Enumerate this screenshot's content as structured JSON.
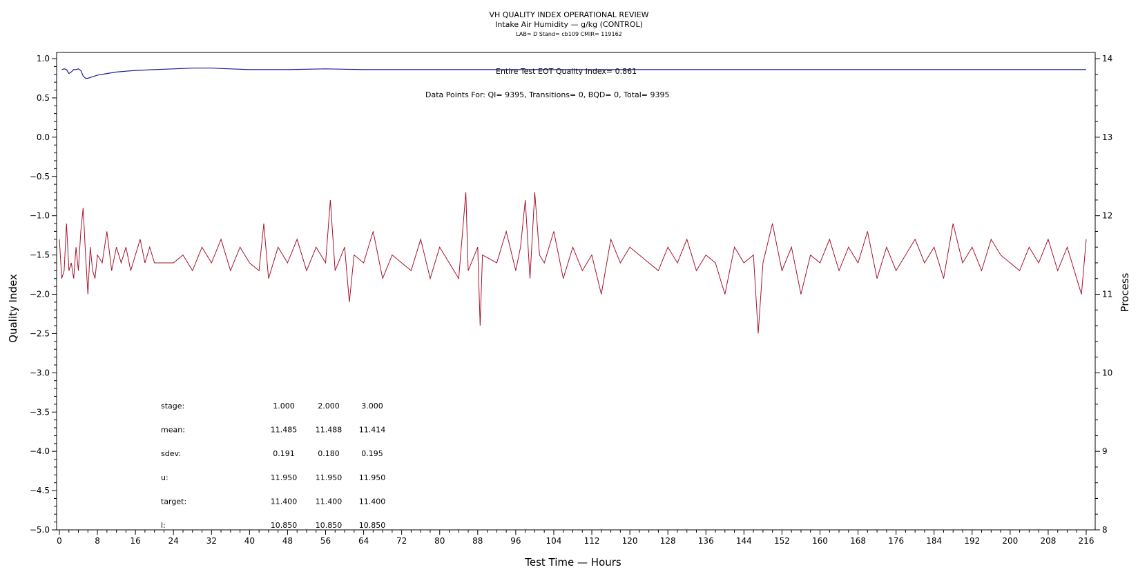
{
  "titles": {
    "line1": "VH QUALITY INDEX OPERATIONAL REVIEW",
    "line2": "Intake Air Humidity — g/kg (CONTROL)",
    "line3": "LAB= D Stand= cb109 CMIR= 119162"
  },
  "annotations": {
    "eot": "Entire Test EOT Quality Index=   0.861",
    "points": "Data Points For: QI=  9395, Transitions=     0, BQD=     0, Total=  9395"
  },
  "stats": {
    "rows": [
      {
        "label": "stage:",
        "values": [
          "1.000",
          "2.000",
          "3.000"
        ]
      },
      {
        "label": "mean:",
        "values": [
          "11.485",
          "11.488",
          "11.414"
        ]
      },
      {
        "label": "sdev:",
        "values": [
          "0.191",
          "0.180",
          "0.195"
        ]
      },
      {
        "label": "u:",
        "values": [
          "11.950",
          "11.950",
          "11.950"
        ]
      },
      {
        "label": "target:",
        "values": [
          "11.400",
          "11.400",
          "11.400"
        ]
      },
      {
        "label": "l:",
        "values": [
          "10.850",
          "10.850",
          "10.850"
        ]
      }
    ]
  },
  "colors": {
    "quality_index_line": "#1a1a99",
    "process_line": "#a8102a",
    "axis": "#000000"
  },
  "chart_data": {
    "type": "line",
    "title": "VH QUALITY INDEX OPERATIONAL REVIEW",
    "xlabel": "Test Time — Hours",
    "ylabel": "Quality Index",
    "y2label": "Process",
    "xlim": [
      0,
      216
    ],
    "ylim": [
      -5.0,
      1.0
    ],
    "y2lim": [
      8,
      14
    ],
    "xticks": [
      "0",
      "8",
      "16",
      "24",
      "32",
      "40",
      "48",
      "56",
      "64",
      "72",
      "80",
      "88",
      "96",
      "104",
      "112",
      "120",
      "128",
      "136",
      "144",
      "152",
      "160",
      "168",
      "176",
      "184",
      "192",
      "200",
      "208",
      "216"
    ],
    "yticks": [
      "1.0",
      "0.5",
      "0.0",
      "−0.5",
      "−1.0",
      "−1.5",
      "−2.0",
      "−2.5",
      "−3.0",
      "−3.5",
      "−4.0",
      "−4.5",
      "−5.0"
    ],
    "y2ticks": [
      "14",
      "13",
      "12",
      "11",
      "10",
      "9",
      "8"
    ],
    "grid": false,
    "series": [
      {
        "axis": "left",
        "x": [
          0.5,
          1.0,
          1.5,
          2.0,
          2.5,
          3.0,
          3.5,
          4.0,
          4.5,
          5.0,
          5.5,
          6.0,
          7.0,
          8.0,
          10,
          12,
          14,
          16,
          20,
          24,
          28,
          32,
          36,
          40,
          44,
          48,
          56,
          64,
          72,
          80,
          88,
          96,
          104,
          112,
          120,
          128,
          136,
          144,
          152,
          160,
          168,
          172,
          176,
          184,
          192,
          200,
          208,
          216
        ],
        "values": [
          0.86,
          0.87,
          0.86,
          0.81,
          0.83,
          0.86,
          0.86,
          0.87,
          0.85,
          0.78,
          0.75,
          0.75,
          0.77,
          0.79,
          0.81,
          0.83,
          0.84,
          0.85,
          0.86,
          0.87,
          0.88,
          0.88,
          0.87,
          0.86,
          0.86,
          0.86,
          0.87,
          0.86,
          0.86,
          0.86,
          0.86,
          0.86,
          0.86,
          0.86,
          0.86,
          0.86,
          0.86,
          0.86,
          0.86,
          0.86,
          0.86,
          0.86,
          0.86,
          0.86,
          0.86,
          0.86,
          0.86,
          0.86
        ]
      },
      {
        "axis": "right",
        "x": [
          0.0,
          0.5,
          1.0,
          1.5,
          2.0,
          2.5,
          3.0,
          3.5,
          4.0,
          4.5,
          5.0,
          5.5,
          6.0,
          6.5,
          7.0,
          7.5,
          8.0,
          9.0,
          10.0,
          11.0,
          12.0,
          13.0,
          14.0,
          15.0,
          16.0,
          17.0,
          18.0,
          19.0,
          20.0,
          24.0,
          26.0,
          28.0,
          30.0,
          32.0,
          34.0,
          36.0,
          38.0,
          40.0,
          42.0,
          43.0,
          44.0,
          46.0,
          48.0,
          50.0,
          52.0,
          54.0,
          56.0,
          57.0,
          58.0,
          60.0,
          61.0,
          62.0,
          64.0,
          66.0,
          68.0,
          70.0,
          72.0,
          74.0,
          76.0,
          78.0,
          80.0,
          82.0,
          84.0,
          85.5,
          86.0,
          88.0,
          88.5,
          89.0,
          92.0,
          94.0,
          96.0,
          97.0,
          98.0,
          99.0,
          100.0,
          101.0,
          102.0,
          104.0,
          106.0,
          108.0,
          110.0,
          112.0,
          114.0,
          116.0,
          118.0,
          120.0,
          124.0,
          126.0,
          128.0,
          130.0,
          132.0,
          134.0,
          136.0,
          138.0,
          140.0,
          142.0,
          144.0,
          146.0,
          147.0,
          148.0,
          150.0,
          152.0,
          154.0,
          156.0,
          158.0,
          160.0,
          162.0,
          164.0,
          166.0,
          168.0,
          170.0,
          172.0,
          174.0,
          176.0,
          178.0,
          180.0,
          182.0,
          184.0,
          186.0,
          188.0,
          190.0,
          192.0,
          194.0,
          196.0,
          198.0,
          200.0,
          202.0,
          204.0,
          206.0,
          208.0,
          210.0,
          212.0,
          214.0,
          215.0,
          216.0
        ],
        "values": [
          11.7,
          11.2,
          11.3,
          11.9,
          11.3,
          11.4,
          11.2,
          11.6,
          11.3,
          11.8,
          12.1,
          11.5,
          11.0,
          11.6,
          11.3,
          11.2,
          11.5,
          11.4,
          11.8,
          11.3,
          11.6,
          11.4,
          11.6,
          11.3,
          11.5,
          11.7,
          11.4,
          11.6,
          11.4,
          11.4,
          11.5,
          11.3,
          11.6,
          11.4,
          11.7,
          11.3,
          11.6,
          11.4,
          11.3,
          11.9,
          11.2,
          11.6,
          11.4,
          11.7,
          11.3,
          11.6,
          11.4,
          12.2,
          11.3,
          11.6,
          10.9,
          11.5,
          11.4,
          11.8,
          11.2,
          11.5,
          11.4,
          11.3,
          11.7,
          11.2,
          11.6,
          11.4,
          11.2,
          12.3,
          11.3,
          11.6,
          10.6,
          11.5,
          11.4,
          11.8,
          11.3,
          11.6,
          12.2,
          11.2,
          12.3,
          11.5,
          11.4,
          11.8,
          11.2,
          11.6,
          11.3,
          11.5,
          11.0,
          11.7,
          11.4,
          11.6,
          11.4,
          11.3,
          11.6,
          11.4,
          11.7,
          11.3,
          11.5,
          11.4,
          11.0,
          11.6,
          11.4,
          11.5,
          10.5,
          11.4,
          11.9,
          11.3,
          11.6,
          11.0,
          11.5,
          11.4,
          11.7,
          11.3,
          11.6,
          11.4,
          11.8,
          11.2,
          11.6,
          11.3,
          11.5,
          11.7,
          11.4,
          11.6,
          11.2,
          11.9,
          11.4,
          11.6,
          11.3,
          11.7,
          11.5,
          11.4,
          11.3,
          11.6,
          11.4,
          11.7,
          11.3,
          11.6,
          11.2,
          11.0,
          11.7
        ]
      }
    ]
  }
}
